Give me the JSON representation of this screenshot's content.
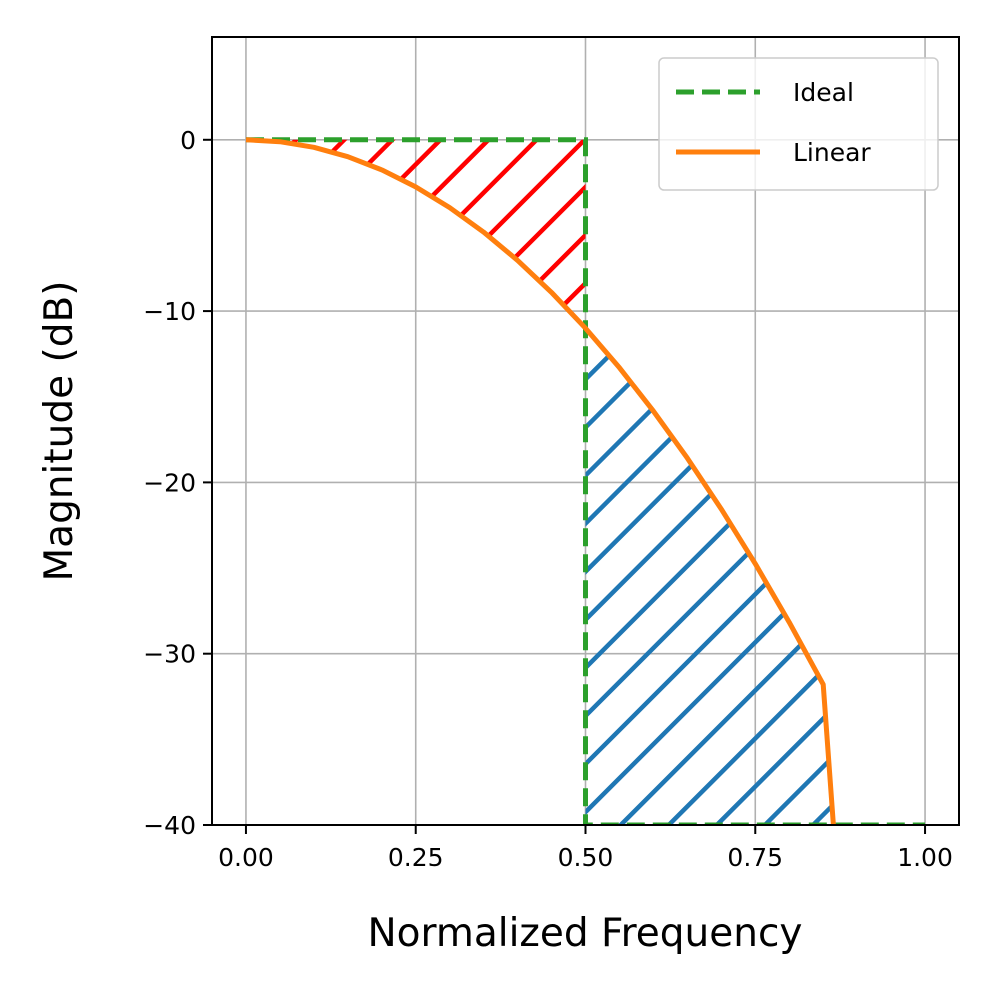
{
  "chart_data": {
    "type": "line",
    "xlabel": "Normalized Frequency",
    "ylabel": "Magnitude (dB)",
    "xlim": [
      -0.05,
      1.05
    ],
    "ylim": [
      -40,
      6
    ],
    "xticks": [
      0.0,
      0.25,
      0.5,
      0.75,
      1.0
    ],
    "xtick_labels": [
      "0.00",
      "0.25",
      "0.50",
      "0.75",
      "1.00"
    ],
    "yticks": [
      0,
      -10,
      -20,
      -30,
      -40
    ],
    "ytick_labels": [
      "0",
      "−10",
      "−20",
      "−30",
      "−40"
    ],
    "grid": true,
    "legend_position": "top-right",
    "series": [
      {
        "name": "Ideal",
        "style": "dashed",
        "color": "#2ca02c",
        "x": [
          0.0,
          0.5,
          0.5,
          1.0
        ],
        "y": [
          0,
          0,
          -40,
          -40
        ]
      },
      {
        "name": "Linear",
        "style": "solid",
        "color": "#ff7f0e",
        "x": [
          0.0,
          0.05,
          0.1,
          0.15,
          0.2,
          0.25,
          0.3,
          0.35,
          0.4,
          0.45,
          0.5,
          0.55,
          0.6,
          0.65,
          0.7,
          0.75,
          0.8,
          0.85,
          0.865
        ],
        "y": [
          0.0,
          -0.11,
          -0.44,
          -0.99,
          -1.76,
          -2.75,
          -3.96,
          -5.39,
          -7.04,
          -8.91,
          -11.0,
          -13.31,
          -15.84,
          -18.59,
          -21.56,
          -24.75,
          -28.16,
          -31.79,
          -40.0
        ]
      }
    ],
    "fill_regions": [
      {
        "name": "passband-error",
        "color": "#ff0000",
        "hatch": "diagonal",
        "x_range": [
          0.0,
          0.5
        ]
      },
      {
        "name": "stopband-error",
        "color": "#1f77b4",
        "hatch": "diagonal",
        "x_range": [
          0.5,
          0.865
        ]
      }
    ]
  }
}
